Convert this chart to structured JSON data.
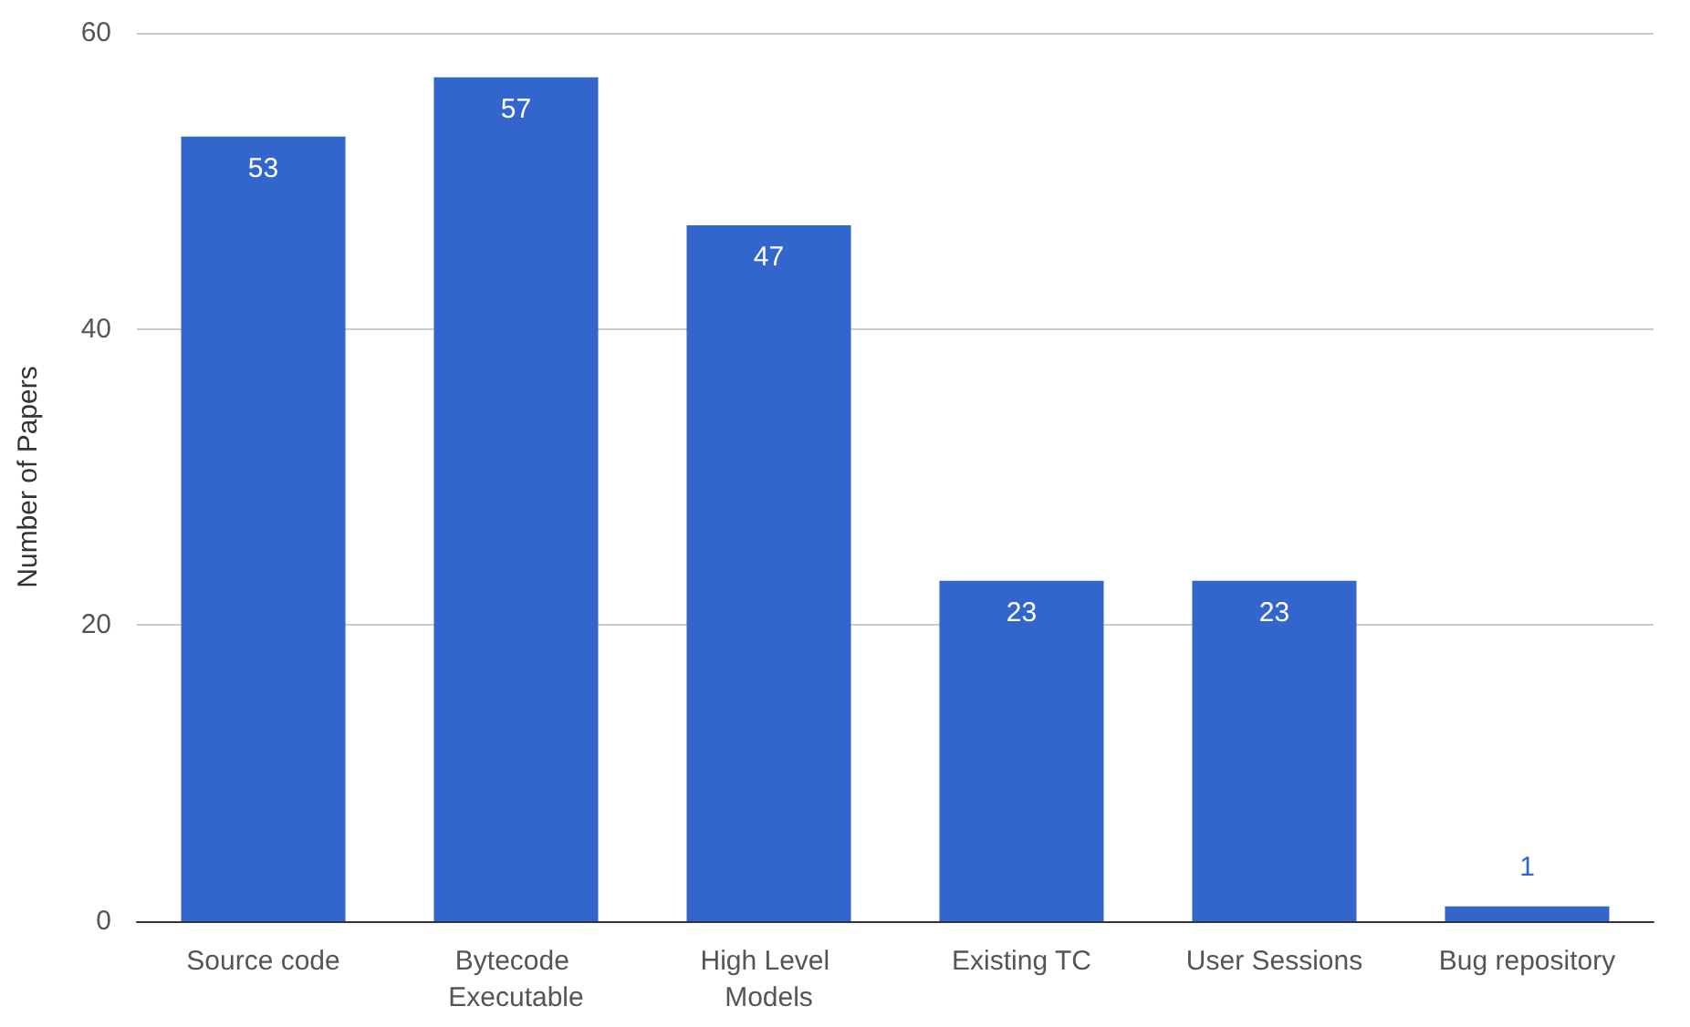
{
  "chart_data": {
    "type": "bar",
    "ylabel": "Number of Papers",
    "categories": [
      "Source code",
      "Bytecode Executable",
      "High Level Models",
      "Existing TC",
      "User Sessions",
      "Bug repository"
    ],
    "values": [
      53,
      57,
      47,
      23,
      23,
      1
    ],
    "color": "#3366cc",
    "ylim": [
      0,
      60
    ],
    "yticks": [
      0,
      20,
      40,
      60
    ],
    "grid": "y",
    "data_labels": true
  }
}
